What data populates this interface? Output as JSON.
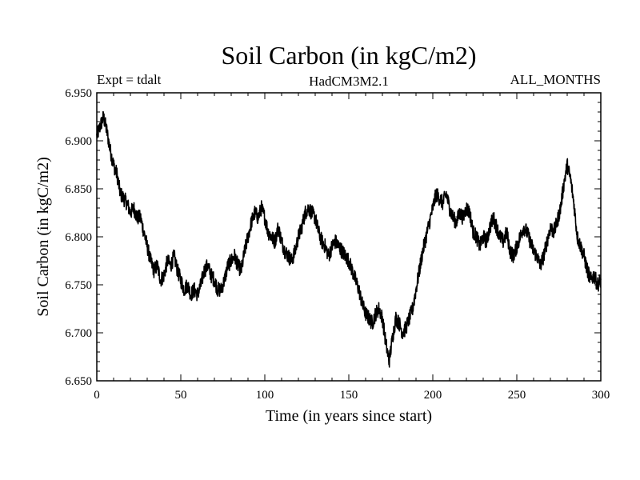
{
  "chart_data": {
    "type": "line",
    "title": "Soil Carbon (in kgC/m2)",
    "experiment_label": "Expt = tdalt",
    "model_label": "HadCM3M2.1",
    "period_label": "ALL_MONTHS",
    "xlabel": "Time (in years since start)",
    "ylabel": "Soil Carbon (in kgC/m2)",
    "xlim": [
      0,
      300
    ],
    "ylim": [
      6.65,
      6.95
    ],
    "xticks": [
      0,
      50,
      100,
      150,
      200,
      250,
      300
    ],
    "xtick_labels": [
      "0",
      "50",
      "100",
      "150",
      "200",
      "250",
      "300"
    ],
    "yticks": [
      6.65,
      6.7,
      6.75,
      6.8,
      6.85,
      6.9,
      6.95
    ],
    "ytick_labels": [
      "6.650",
      "6.700",
      "6.750",
      "6.800",
      "6.850",
      "6.900",
      "6.950"
    ],
    "grid": false,
    "series": [
      {
        "name": "Soil Carbon",
        "color": "#000000",
        "x": [
          0,
          2,
          4,
          6,
          8,
          10,
          12,
          14,
          16,
          18,
          20,
          22,
          24,
          26,
          28,
          30,
          32,
          34,
          36,
          38,
          40,
          42,
          44,
          46,
          48,
          50,
          52,
          54,
          56,
          58,
          60,
          62,
          64,
          66,
          68,
          70,
          72,
          74,
          76,
          78,
          80,
          82,
          84,
          86,
          88,
          90,
          92,
          94,
          96,
          98,
          100,
          102,
          104,
          106,
          108,
          110,
          112,
          114,
          116,
          118,
          120,
          122,
          124,
          126,
          128,
          130,
          132,
          134,
          136,
          138,
          140,
          142,
          144,
          146,
          148,
          150,
          152,
          154,
          156,
          158,
          160,
          162,
          164,
          166,
          168,
          170,
          172,
          174,
          176,
          178,
          180,
          182,
          184,
          186,
          188,
          190,
          192,
          194,
          196,
          198,
          200,
          202,
          204,
          206,
          208,
          210,
          212,
          214,
          216,
          218,
          220,
          222,
          224,
          226,
          228,
          230,
          232,
          234,
          236,
          238,
          240,
          242,
          244,
          246,
          248,
          250,
          252,
          254,
          256,
          258,
          260,
          262,
          264,
          266,
          268,
          270,
          272,
          274,
          276,
          278,
          280,
          282,
          284,
          286,
          288,
          290,
          292,
          294,
          296,
          298,
          300
        ],
        "y": [
          6.905,
          6.915,
          6.925,
          6.91,
          6.89,
          6.875,
          6.865,
          6.845,
          6.84,
          6.835,
          6.825,
          6.83,
          6.82,
          6.82,
          6.805,
          6.79,
          6.775,
          6.765,
          6.77,
          6.755,
          6.76,
          6.775,
          6.77,
          6.78,
          6.765,
          6.755,
          6.745,
          6.75,
          6.74,
          6.745,
          6.74,
          6.75,
          6.765,
          6.77,
          6.76,
          6.755,
          6.745,
          6.745,
          6.755,
          6.77,
          6.775,
          6.78,
          6.77,
          6.765,
          6.785,
          6.8,
          6.815,
          6.825,
          6.82,
          6.83,
          6.82,
          6.805,
          6.8,
          6.795,
          6.81,
          6.795,
          6.785,
          6.78,
          6.775,
          6.785,
          6.8,
          6.81,
          6.825,
          6.83,
          6.825,
          6.82,
          6.805,
          6.795,
          6.79,
          6.78,
          6.79,
          6.795,
          6.79,
          6.785,
          6.78,
          6.775,
          6.765,
          6.755,
          6.745,
          6.73,
          6.72,
          6.715,
          6.71,
          6.72,
          6.725,
          6.715,
          6.69,
          6.67,
          6.695,
          6.715,
          6.71,
          6.7,
          6.705,
          6.715,
          6.725,
          6.745,
          6.765,
          6.785,
          6.8,
          6.815,
          6.83,
          6.845,
          6.84,
          6.835,
          6.845,
          6.83,
          6.82,
          6.815,
          6.825,
          6.82,
          6.83,
          6.825,
          6.805,
          6.8,
          6.79,
          6.8,
          6.795,
          6.81,
          6.82,
          6.81,
          6.8,
          6.795,
          6.805,
          6.785,
          6.78,
          6.79,
          6.8,
          6.81,
          6.805,
          6.795,
          6.785,
          6.78,
          6.77,
          6.78,
          6.795,
          6.81,
          6.805,
          6.815,
          6.83,
          6.855,
          6.875,
          6.86,
          6.835,
          6.8,
          6.79,
          6.78,
          6.765,
          6.755,
          6.76,
          6.75,
          6.755
        ]
      }
    ]
  }
}
